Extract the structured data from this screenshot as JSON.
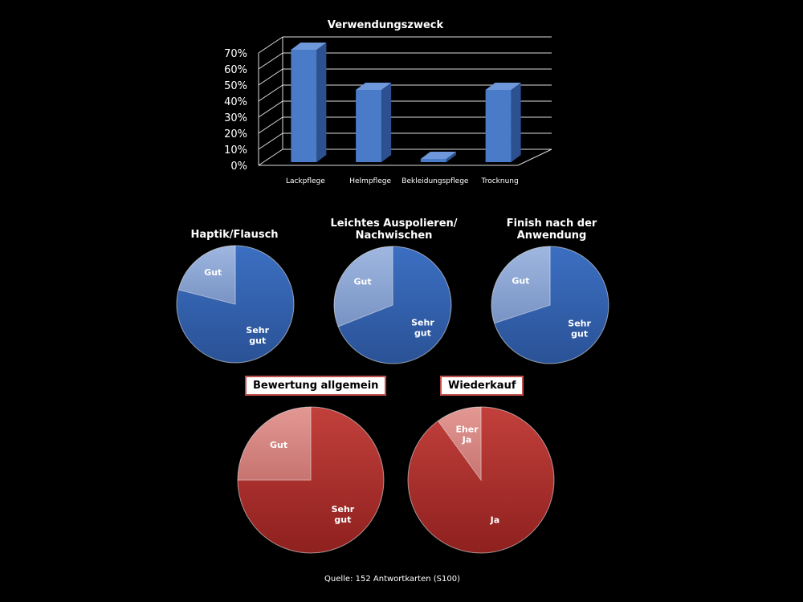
{
  "colors": {
    "background": "#000000",
    "bar_front": "#4a7bc8",
    "bar_side": "#2d5190",
    "bar_top": "#6f98db",
    "blue_dark": "#3563b0",
    "blue_light": "#8fa9d6",
    "red_dark": "#b3302d",
    "red_light": "#d88683",
    "box_border": "#c0504d"
  },
  "chart_data": [
    {
      "type": "bar",
      "title": "Verwendungszweck",
      "categories": [
        "Lackpflege",
        "Helmpflege",
        "Bekleidungspflege",
        "Trocknung"
      ],
      "values": [
        70,
        45,
        2,
        45
      ],
      "yticks": [
        "0%",
        "10%",
        "20%",
        "30%",
        "40%",
        "50%",
        "60%",
        "70%"
      ],
      "ylim": [
        0,
        70
      ],
      "grid": true,
      "style": "3d"
    },
    {
      "type": "pie",
      "title": "Haptik/Flausch",
      "labels": [
        "Sehr gut",
        "Gut"
      ],
      "values": [
        79,
        21
      ]
    },
    {
      "type": "pie",
      "title": "Leichtes Auspolieren/ Nachwischen",
      "labels": [
        "Sehr gut",
        "Gut"
      ],
      "values": [
        69,
        31
      ]
    },
    {
      "type": "pie",
      "title": "Finish nach der Anwendung",
      "labels": [
        "Sehr gut",
        "Gut"
      ],
      "values": [
        70,
        30
      ]
    },
    {
      "type": "pie",
      "title": "Bewertung allgemein",
      "labels": [
        "Sehr gut",
        "Gut"
      ],
      "values": [
        75,
        25
      ]
    },
    {
      "type": "pie",
      "title": "Wiederkauf",
      "labels": [
        "Ja",
        "Eher Ja"
      ],
      "values": [
        90,
        10
      ]
    }
  ],
  "source": "Quelle: 152  Antwortkarten  (S100)"
}
